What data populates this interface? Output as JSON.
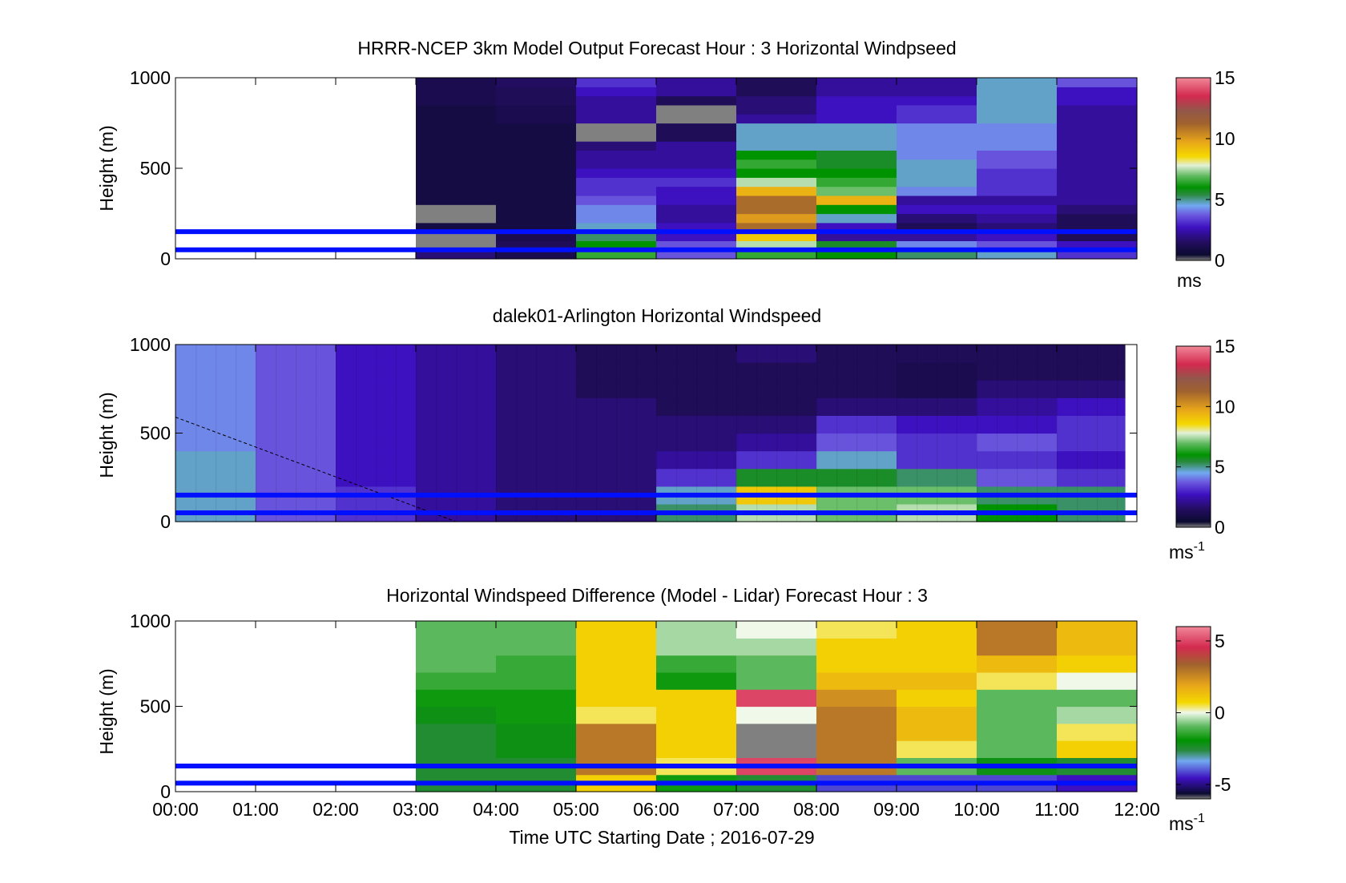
{
  "figure": {
    "xlabel": "Time UTC  Starting Date ; 2016-07-29",
    "colors": {
      "guide_lines": "#0010ff",
      "missing": "#808080",
      "axis": "#000000"
    }
  },
  "chart_data": [
    {
      "type": "heatmap",
      "title": "HRRR-NCEP 3km Model Output   Forecast Hour : 3 Horizontal Windpseed",
      "ylabel": "Height (m)",
      "ylim": [
        0,
        1000
      ],
      "yticks": [
        "0",
        "500",
        "1000"
      ],
      "xlim": [
        "00:00",
        "12:00"
      ],
      "guide_lines_m": [
        50,
        150
      ],
      "colorbar": {
        "range": [
          0,
          15
        ],
        "ticks": [
          "0",
          "5",
          "10",
          "15"
        ],
        "unit": "ms",
        "unit_sup": ""
      },
      "x_hours": [
        3,
        4,
        5,
        6,
        7,
        8,
        9,
        10,
        11
      ],
      "heights_m": [
        25,
        75,
        125,
        175,
        225,
        275,
        325,
        375,
        425,
        475,
        525,
        575,
        625,
        675,
        725,
        775,
        825,
        875,
        925,
        975
      ],
      "values": [
        [
          1.5,
          0.8,
          6.5,
          3.5,
          6.5,
          6.0,
          5.0,
          4.5,
          3.0
        ],
        [
          null,
          1.0,
          6.0,
          3.5,
          7.5,
          5.5,
          4.0,
          3.5,
          2.5
        ],
        [
          null,
          0.8,
          5.0,
          2.5,
          9.0,
          2.0,
          2.0,
          2.5,
          1.0
        ],
        [
          0.5,
          0.5,
          4.5,
          2.5,
          11.0,
          2.5,
          1.0,
          1.5,
          1.0
        ],
        [
          null,
          0.5,
          4.0,
          2.0,
          10.0,
          4.5,
          1.5,
          2.0,
          1.0
        ],
        [
          null,
          0.5,
          4.0,
          2.0,
          11.0,
          6.0,
          2.5,
          2.5,
          1.5
        ],
        [
          0.5,
          0.5,
          3.5,
          2.5,
          11.0,
          9.5,
          2.0,
          2.0,
          2.0
        ],
        [
          0.5,
          0.5,
          3.0,
          2.5,
          9.5,
          7.0,
          4.0,
          3.0,
          2.0
        ],
        [
          0.5,
          0.5,
          3.0,
          3.0,
          7.5,
          6.5,
          4.5,
          3.0,
          2.0
        ],
        [
          0.5,
          0.5,
          2.5,
          2.5,
          6.0,
          6.0,
          4.5,
          3.0,
          2.0
        ],
        [
          0.5,
          0.5,
          2.0,
          2.0,
          6.5,
          5.5,
          4.5,
          3.5,
          2.0
        ],
        [
          0.5,
          0.5,
          2.0,
          2.0,
          6.0,
          5.5,
          4.0,
          3.5,
          2.0
        ],
        [
          0.5,
          0.5,
          1.5,
          2.0,
          4.5,
          4.5,
          4.0,
          4.0,
          2.0
        ],
        [
          0.5,
          0.5,
          null,
          1.0,
          4.5,
          4.5,
          4.0,
          4.0,
          2.0
        ],
        [
          0.5,
          0.5,
          null,
          1.0,
          4.5,
          4.5,
          4.0,
          4.0,
          2.0
        ],
        [
          0.5,
          0.8,
          2.0,
          null,
          2.0,
          2.5,
          3.0,
          4.5,
          2.0
        ],
        [
          0.5,
          0.8,
          2.0,
          null,
          1.5,
          2.5,
          3.0,
          4.5,
          2.0
        ],
        [
          0.8,
          1.0,
          2.0,
          1.0,
          1.5,
          2.5,
          2.5,
          4.5,
          2.5
        ],
        [
          0.8,
          1.0,
          2.5,
          2.0,
          1.0,
          2.0,
          2.0,
          4.5,
          2.5
        ],
        [
          0.8,
          1.2,
          3.0,
          2.0,
          1.0,
          2.0,
          2.0,
          4.5,
          3.5
        ]
      ]
    },
    {
      "type": "heatmap",
      "title": "dalek01-Arlington  Horizontal Windspeed",
      "ylabel": "Height (m)",
      "ylim": [
        0,
        1000
      ],
      "yticks": [
        "0",
        "500",
        "1000"
      ],
      "xlim": [
        "00:00",
        "12:00"
      ],
      "guide_lines_m": [
        50,
        150
      ],
      "colorbar": {
        "range": [
          0,
          15
        ],
        "ticks": [
          "0",
          "5",
          "10",
          "15"
        ],
        "unit": "ms",
        "unit_sup": "-1"
      },
      "x_hours": [
        0,
        1,
        2,
        3,
        4,
        5,
        6,
        7,
        8,
        9,
        10,
        11
      ],
      "heights_m": [
        50,
        150,
        250,
        350,
        450,
        550,
        650,
        750,
        850,
        950
      ],
      "values": [
        [
          4.5,
          3.5,
          3.0,
          2.0,
          1.5,
          1.5,
          5.0,
          7.5,
          7.0,
          7.5,
          6.0,
          5.0
        ],
        [
          4.5,
          3.5,
          3.0,
          2.0,
          1.5,
          1.5,
          4.5,
          9.0,
          7.0,
          7.0,
          5.0,
          5.0
        ],
        [
          4.5,
          3.5,
          2.5,
          2.0,
          1.5,
          1.5,
          3.0,
          5.5,
          5.5,
          5.0,
          3.5,
          3.0
        ],
        [
          4.5,
          3.5,
          2.5,
          2.0,
          1.5,
          1.5,
          2.0,
          3.0,
          4.5,
          3.0,
          3.0,
          2.5
        ],
        [
          4.0,
          3.5,
          2.5,
          2.0,
          1.5,
          1.5,
          1.5,
          2.0,
          3.5,
          3.0,
          3.5,
          3.0
        ],
        [
          4.0,
          3.5,
          2.5,
          2.0,
          1.5,
          1.5,
          1.5,
          1.5,
          3.0,
          2.5,
          2.5,
          3.0
        ],
        [
          4.0,
          3.5,
          2.5,
          2.0,
          1.5,
          1.5,
          1.0,
          1.0,
          1.5,
          1.5,
          2.0,
          2.5
        ],
        [
          4.0,
          3.5,
          2.5,
          2.0,
          1.5,
          1.0,
          1.0,
          1.0,
          1.0,
          0.8,
          1.5,
          1.5
        ],
        [
          4.0,
          3.5,
          2.5,
          2.0,
          1.5,
          1.0,
          1.0,
          1.0,
          1.0,
          0.8,
          1.0,
          1.0
        ],
        [
          4.0,
          3.5,
          2.5,
          2.0,
          1.5,
          1.0,
          1.0,
          1.5,
          1.0,
          1.0,
          1.0,
          1.0
        ]
      ]
    },
    {
      "type": "heatmap",
      "title": "Horizontal Windspeed Difference (Model - Lidar) Forecast Hour : 3",
      "ylabel": "Height (m)",
      "ylim": [
        0,
        1000
      ],
      "yticks": [
        "0",
        "500",
        "1000"
      ],
      "xlim": [
        "00:00",
        "12:00"
      ],
      "xticks": [
        "00:00",
        "01:00",
        "02:00",
        "03:00",
        "04:00",
        "05:00",
        "06:00",
        "07:00",
        "08:00",
        "09:00",
        "10:00",
        "11:00",
        "12:00"
      ],
      "guide_lines_m": [
        50,
        150
      ],
      "colorbar": {
        "range": [
          -6,
          6
        ],
        "ticks": [
          "-5",
          "0",
          "5"
        ],
        "unit": "ms",
        "unit_sup": "-1"
      },
      "x_hours": [
        3,
        4,
        5,
        6,
        7,
        8,
        9,
        10,
        11
      ],
      "heights_m": [
        50,
        150,
        250,
        350,
        450,
        550,
        650,
        750,
        850,
        950
      ],
      "values": [
        [
          -3.0,
          -3.0,
          1.0,
          -2.0,
          -3.0,
          -4.5,
          -4.5,
          -4.5,
          -5.0
        ],
        [
          -3.0,
          -3.0,
          3.0,
          0.5,
          5.0,
          3.0,
          -1.0,
          -2.5,
          -3.0
        ],
        [
          -3.0,
          -2.5,
          3.0,
          1.0,
          null,
          3.0,
          0.5,
          -1.0,
          1.0
        ],
        [
          -3.0,
          -2.5,
          3.0,
          1.0,
          null,
          3.0,
          1.5,
          -1.0,
          0.5
        ],
        [
          -2.5,
          -2.0,
          0.5,
          1.0,
          0.0,
          3.0,
          1.5,
          -1.0,
          -0.5
        ],
        [
          -2.0,
          -2.0,
          1.0,
          1.0,
          5.0,
          2.5,
          1.0,
          -1.0,
          -1.0
        ],
        [
          -1.5,
          -1.5,
          1.0,
          -2.0,
          -1.0,
          1.5,
          1.5,
          0.5,
          0.0
        ],
        [
          -1.0,
          -1.5,
          1.0,
          -1.5,
          -1.0,
          1.0,
          1.0,
          1.5,
          1.0
        ],
        [
          -1.0,
          -1.0,
          1.0,
          -0.5,
          -0.5,
          1.0,
          1.0,
          3.0,
          1.5
        ],
        [
          -1.0,
          -1.0,
          1.0,
          -0.5,
          0.0,
          0.5,
          1.0,
          3.0,
          1.5
        ]
      ]
    }
  ]
}
